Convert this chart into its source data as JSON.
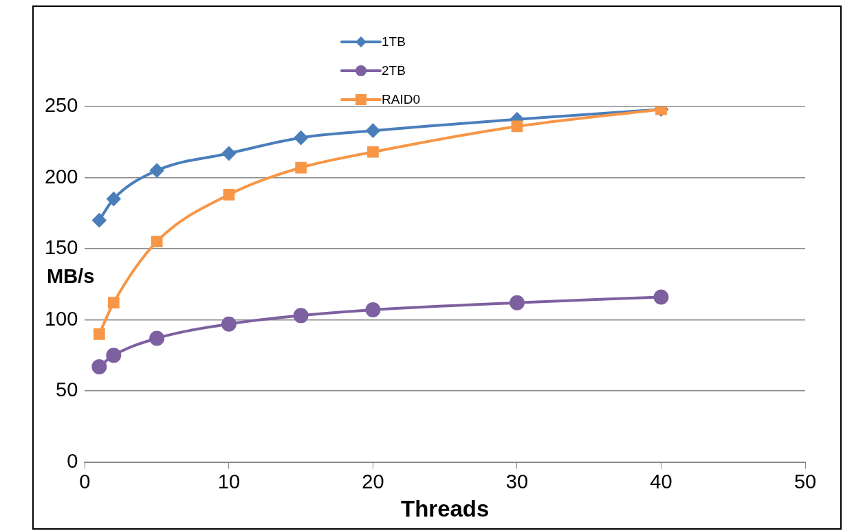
{
  "chart_data": {
    "type": "line",
    "xlabel": "Threads",
    "ylabel": "MB/s",
    "xlim": [
      0,
      50
    ],
    "xticks": [
      0,
      10,
      20,
      30,
      40,
      50
    ],
    "ylim": [
      0,
      250
    ],
    "yticks": [
      0,
      50,
      100,
      150,
      200,
      250
    ],
    "grid": "y",
    "legend": "top",
    "line_style": "solid",
    "series": [
      {
        "name": "1TB",
        "color": "#4a7ebb",
        "marker": "diamond",
        "x": [
          1,
          2,
          5,
          10,
          15,
          20,
          30,
          40
        ],
        "values": [
          170,
          185,
          205,
          217,
          228,
          233,
          241,
          248
        ]
      },
      {
        "name": "2TB",
        "color": "#7d60a0",
        "marker": "circle",
        "x": [
          1,
          2,
          5,
          10,
          15,
          20,
          30,
          40
        ],
        "values": [
          67,
          75,
          87,
          97,
          103,
          107,
          112,
          116
        ]
      },
      {
        "name": "RAID0",
        "color": "#f79646",
        "marker": "square",
        "x": [
          1,
          2,
          5,
          10,
          15,
          20,
          30,
          40
        ],
        "values": [
          90,
          112,
          155,
          188,
          207,
          218,
          236,
          248
        ]
      }
    ]
  }
}
